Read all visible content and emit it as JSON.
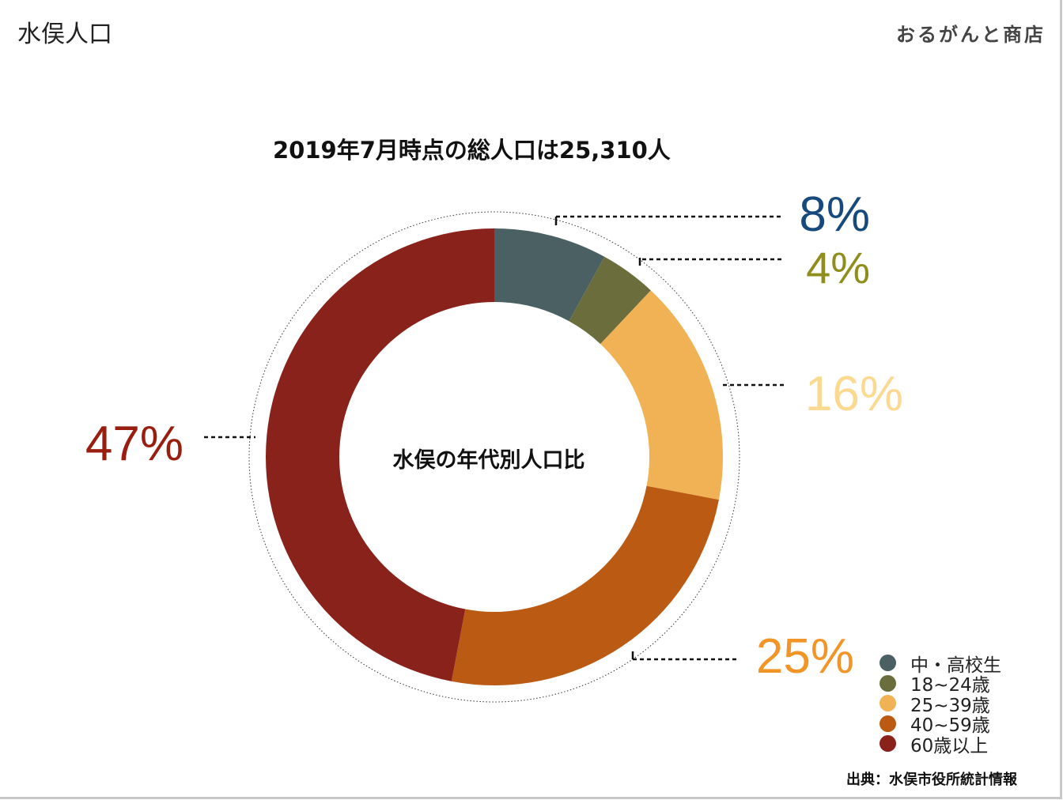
{
  "header": {
    "title": "水俣人口",
    "brand": "おるがんと商店"
  },
  "chart_data": {
    "type": "pie",
    "title": "2019年7月時点の総人口は25,310人",
    "center_label": "水俣の年代別人口比",
    "donut": true,
    "slices": [
      {
        "label": "中・高校生",
        "value": 8,
        "display": "8%",
        "color": "#4a6062",
        "label_color": "#174a7c"
      },
      {
        "label": "18~24歳",
        "value": 4,
        "display": "4%",
        "color": "#6b6e3c",
        "label_color": "#8f8e1d"
      },
      {
        "label": "25~39歳",
        "value": 16,
        "display": "16%",
        "color": "#f0b254",
        "label_color": "#fbd990"
      },
      {
        "label": "40~59歳",
        "value": 25,
        "display": "25%",
        "color": "#ba5a13",
        "label_color": "#f29527"
      },
      {
        "label": "60歳以上",
        "value": 47,
        "display": "47%",
        "color": "#8a221c",
        "label_color": "#991e10"
      }
    ],
    "legend_position": "bottom-right"
  },
  "footer": {
    "source": "出典：水俣市役所統計情報"
  }
}
